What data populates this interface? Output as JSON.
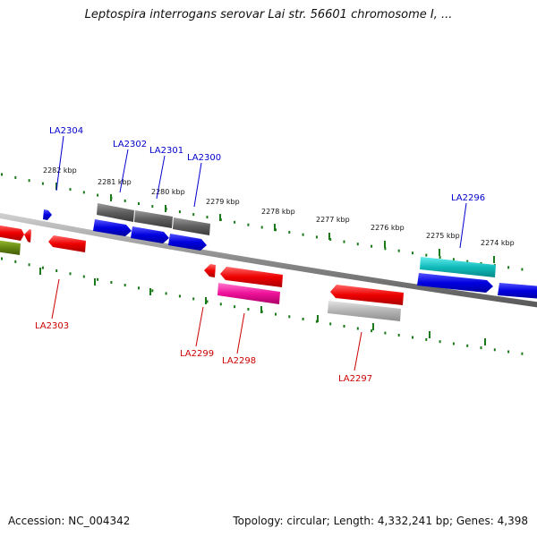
{
  "title": "Leptospira interrogans serovar Lai str. 56601 chromosome I, ...",
  "footer": {
    "accession": "Accession: NC_004342",
    "summary": "Topology: circular; Length: 4,332,241 bp; Genes: 4,398"
  },
  "colors": {
    "forward_label": "#0000cc",
    "reverse_label": "#cc0000",
    "tick": "#1a7a1a",
    "backbone": "#888888"
  },
  "scale_labels": [
    "2282 kbp",
    "2281 kbp",
    "2280 kbp",
    "2279 kbp",
    "2278 kbp",
    "2277 kbp",
    "2276 kbp",
    "2275 kbp",
    "2274 kbp"
  ],
  "gene_labels": [
    {
      "text": "LA2304",
      "strand": "forward"
    },
    {
      "text": "LA2302",
      "strand": "forward"
    },
    {
      "text": "LA2301",
      "strand": "forward"
    },
    {
      "text": "LA2300",
      "strand": "forward"
    },
    {
      "text": "LA2296",
      "strand": "forward"
    },
    {
      "text": "LA2303",
      "strand": "reverse"
    },
    {
      "text": "LA2299",
      "strand": "reverse"
    },
    {
      "text": "LA2298",
      "strand": "reverse"
    },
    {
      "text": "LA2297",
      "strand": "reverse"
    }
  ],
  "features": [
    {
      "track": "cds-forward",
      "color": "#6a6a6a"
    },
    {
      "track": "cds-forward",
      "color": "#6a6a6a"
    },
    {
      "track": "cds-forward",
      "color": "#6a6a6a"
    },
    {
      "track": "gene-forward",
      "color": "#0000dd"
    },
    {
      "track": "gene-forward",
      "color": "#0000dd"
    },
    {
      "track": "gene-forward",
      "color": "#0000dd"
    },
    {
      "track": "gene-forward",
      "color": "#0000dd"
    },
    {
      "track": "cds-forward",
      "color": "#11bbbb"
    },
    {
      "track": "gene-forward",
      "color": "#0000dd"
    },
    {
      "track": "gene-forward",
      "color": "#0000dd"
    },
    {
      "track": "gene-forward",
      "color": "#0000dd"
    },
    {
      "track": "gene-reverse",
      "color": "#ee0000"
    },
    {
      "track": "gene-reverse",
      "color": "#ee0000"
    },
    {
      "track": "gene-reverse",
      "color": "#ee0000"
    },
    {
      "track": "gene-reverse",
      "color": "#ee0000"
    },
    {
      "track": "gene-reverse",
      "color": "#ee0000"
    },
    {
      "track": "gene-reverse",
      "color": "#ee0000"
    },
    {
      "track": "cds-reverse",
      "color": "#ee1199"
    },
    {
      "track": "cds-reverse",
      "color": "#aaaaaa"
    },
    {
      "track": "cds-reverse",
      "color": "#668811"
    }
  ]
}
